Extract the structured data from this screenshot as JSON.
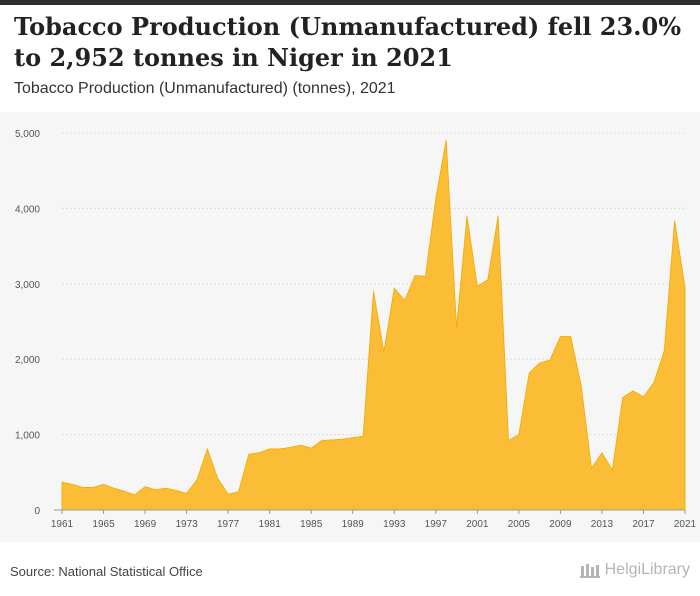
{
  "header": {
    "title": "Tobacco Production (Unmanufactured) fell 23.0% to 2,952 tonnes in Niger in 2021",
    "subtitle": "Tobacco Production (Unmanufactured) (tonnes), 2021"
  },
  "footer": {
    "source": "Source: National Statistical Office",
    "brand": "HelgiLibrary"
  },
  "colors": {
    "area_fill": "#fbbd35",
    "area_stroke": "#f2a900",
    "grid": "#dddddd",
    "background": "#f6f6f6"
  },
  "chart_data": {
    "type": "area",
    "title": "Tobacco Production (Unmanufactured) fell 23.0% to 2,952 tonnes in Niger in 2021",
    "subtitle": "Tobacco Production (Unmanufactured) (tonnes), 2021",
    "xlabel": "",
    "ylabel": "",
    "ylim": [
      0,
      5000
    ],
    "y_ticks": [
      "0",
      "1,000",
      "2,000",
      "3,000",
      "4,000",
      "5,000"
    ],
    "x_ticks": [
      "1961",
      "1965",
      "1969",
      "1973",
      "1977",
      "1981",
      "1985",
      "1989",
      "1993",
      "1997",
      "2001",
      "2005",
      "2009",
      "2013",
      "2017",
      "2021"
    ],
    "grid": true,
    "x": [
      1961,
      1962,
      1963,
      1964,
      1965,
      1966,
      1967,
      1968,
      1969,
      1970,
      1971,
      1972,
      1973,
      1974,
      1975,
      1976,
      1977,
      1978,
      1979,
      1980,
      1981,
      1982,
      1983,
      1984,
      1985,
      1986,
      1987,
      1988,
      1989,
      1990,
      1991,
      1992,
      1993,
      1994,
      1995,
      1996,
      1997,
      1998,
      1999,
      2000,
      2001,
      2002,
      2003,
      2004,
      2005,
      2006,
      2007,
      2008,
      2009,
      2010,
      2011,
      2012,
      2013,
      2014,
      2015,
      2016,
      2017,
      2018,
      2019,
      2020,
      2021
    ],
    "values": [
      370,
      340,
      300,
      300,
      340,
      290,
      250,
      200,
      310,
      270,
      290,
      260,
      220,
      400,
      810,
      420,
      210,
      240,
      740,
      760,
      810,
      810,
      830,
      860,
      820,
      920,
      930,
      940,
      960,
      980,
      2900,
      2100,
      2940,
      2780,
      3110,
      3100,
      4130,
      4910,
      2420,
      3900,
      2970,
      3050,
      3900,
      920,
      1000,
      1820,
      1950,
      1990,
      2300,
      2300,
      1650,
      550,
      760,
      530,
      1490,
      1580,
      1500,
      1690,
      2110,
      3840,
      2952
    ]
  }
}
